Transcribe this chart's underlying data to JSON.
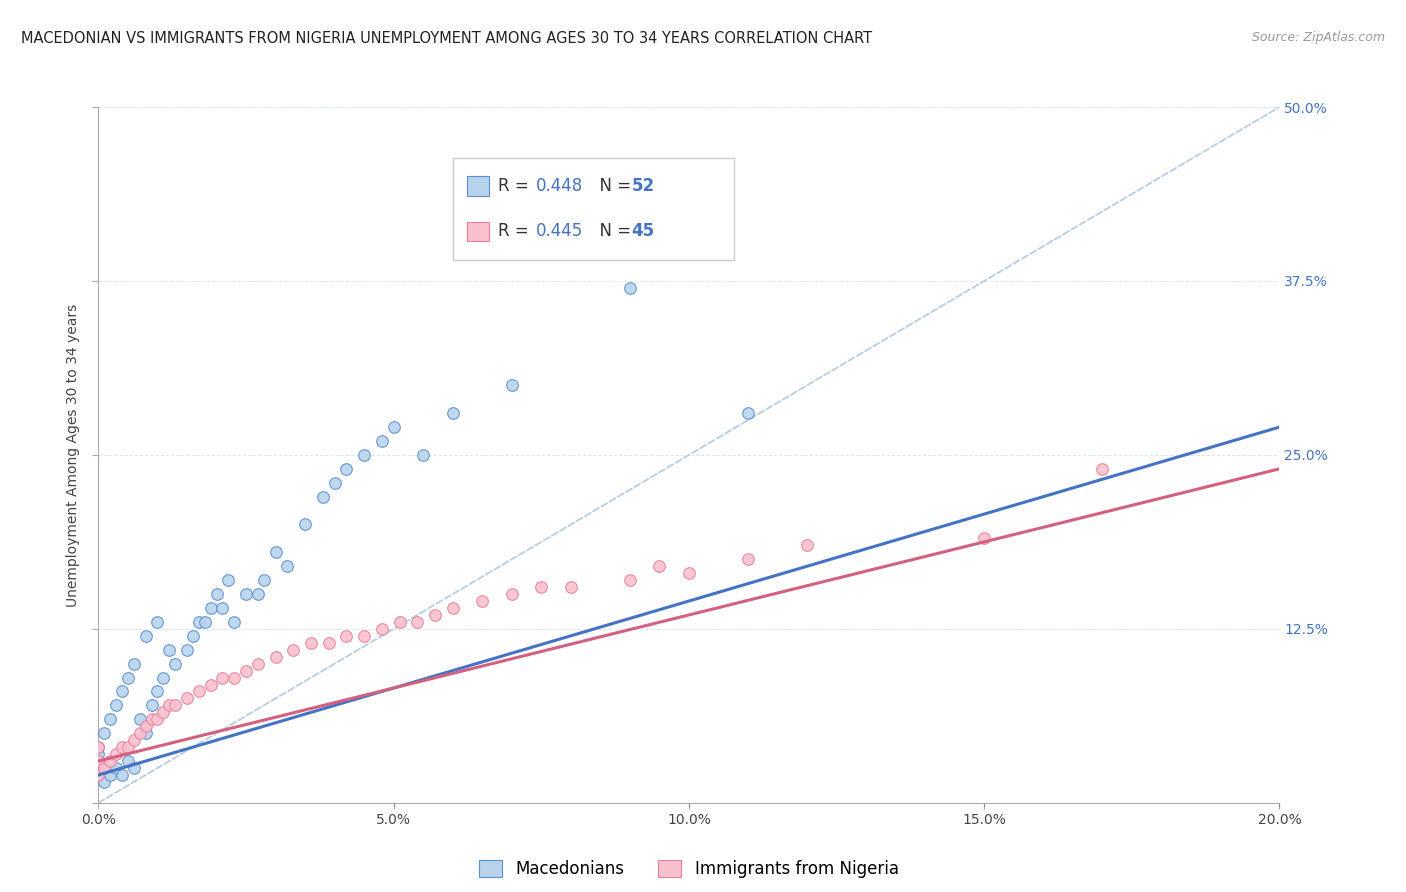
{
  "title": "MACEDONIAN VS IMMIGRANTS FROM NIGERIA UNEMPLOYMENT AMONG AGES 30 TO 34 YEARS CORRELATION CHART",
  "source": "Source: ZipAtlas.com",
  "ylabel": "Unemployment Among Ages 30 to 34 years",
  "xlim": [
    0.0,
    0.2
  ],
  "ylim": [
    0.0,
    0.5
  ],
  "xticks": [
    0.0,
    0.05,
    0.1,
    0.15,
    0.2
  ],
  "yticks": [
    0.0,
    0.125,
    0.25,
    0.375,
    0.5
  ],
  "series1_label": "Macedonians",
  "series1_R": "0.448",
  "series1_N": "52",
  "series1_fill": "#b8d4ed",
  "series1_edge": "#5b8fd4",
  "series1_line": "#4472c4",
  "series2_label": "Immigrants from Nigeria",
  "series2_R": "0.445",
  "series2_N": "45",
  "series2_fill": "#f9c0ce",
  "series2_edge": "#e8809a",
  "series2_line": "#d46080",
  "ref_line_color": "#b8cce4",
  "bg": "#ffffff",
  "grid_color": "#dce6f1",
  "mac_x": [
    0.0,
    0.0,
    0.0,
    0.0,
    0.0,
    0.001,
    0.001,
    0.002,
    0.002,
    0.003,
    0.003,
    0.004,
    0.004,
    0.005,
    0.005,
    0.006,
    0.006,
    0.007,
    0.008,
    0.008,
    0.009,
    0.01,
    0.01,
    0.011,
    0.012,
    0.013,
    0.015,
    0.016,
    0.017,
    0.018,
    0.019,
    0.02,
    0.021,
    0.022,
    0.023,
    0.025,
    0.027,
    0.028,
    0.03,
    0.032,
    0.035,
    0.038,
    0.04,
    0.042,
    0.045,
    0.048,
    0.05,
    0.055,
    0.06,
    0.07,
    0.09,
    0.11
  ],
  "mac_y": [
    0.02,
    0.025,
    0.03,
    0.035,
    0.04,
    0.015,
    0.05,
    0.02,
    0.06,
    0.025,
    0.07,
    0.02,
    0.08,
    0.03,
    0.09,
    0.025,
    0.1,
    0.06,
    0.05,
    0.12,
    0.07,
    0.08,
    0.13,
    0.09,
    0.11,
    0.1,
    0.11,
    0.12,
    0.13,
    0.13,
    0.14,
    0.15,
    0.14,
    0.16,
    0.13,
    0.15,
    0.15,
    0.16,
    0.18,
    0.17,
    0.2,
    0.22,
    0.23,
    0.24,
    0.25,
    0.26,
    0.27,
    0.25,
    0.28,
    0.3,
    0.37,
    0.28
  ],
  "nig_x": [
    0.0,
    0.0,
    0.0,
    0.001,
    0.002,
    0.003,
    0.004,
    0.005,
    0.006,
    0.007,
    0.008,
    0.009,
    0.01,
    0.011,
    0.012,
    0.013,
    0.015,
    0.017,
    0.019,
    0.021,
    0.023,
    0.025,
    0.027,
    0.03,
    0.033,
    0.036,
    0.039,
    0.042,
    0.045,
    0.048,
    0.051,
    0.054,
    0.057,
    0.06,
    0.065,
    0.07,
    0.075,
    0.08,
    0.09,
    0.095,
    0.1,
    0.11,
    0.12,
    0.15,
    0.17
  ],
  "nig_y": [
    0.02,
    0.03,
    0.04,
    0.025,
    0.03,
    0.035,
    0.04,
    0.04,
    0.045,
    0.05,
    0.055,
    0.06,
    0.06,
    0.065,
    0.07,
    0.07,
    0.075,
    0.08,
    0.085,
    0.09,
    0.09,
    0.095,
    0.1,
    0.105,
    0.11,
    0.115,
    0.115,
    0.12,
    0.12,
    0.125,
    0.13,
    0.13,
    0.135,
    0.14,
    0.145,
    0.15,
    0.155,
    0.155,
    0.16,
    0.17,
    0.165,
    0.175,
    0.185,
    0.19,
    0.24
  ],
  "title_fs": 10.5,
  "source_fs": 9,
  "label_fs": 10,
  "tick_fs": 10,
  "legend_fs": 12
}
